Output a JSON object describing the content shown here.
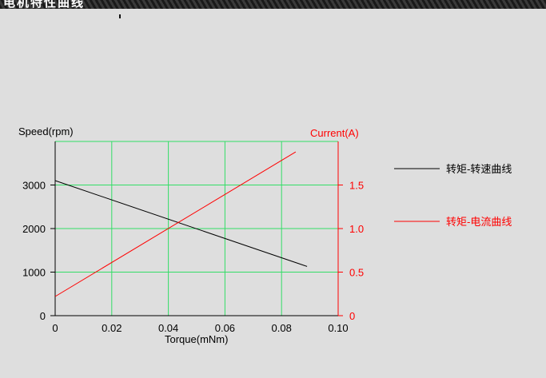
{
  "banner": {
    "text": "电机特性曲线"
  },
  "chart_data": {
    "type": "line",
    "xlabel": "Torque(mNm)",
    "ylabel_left": "Speed(rpm)",
    "ylabel_right": "Current(A)",
    "xlim": [
      0,
      0.1
    ],
    "ylim_left": [
      0,
      4000
    ],
    "ylim_right": [
      0,
      2.0
    ],
    "x_ticks": [
      "0",
      "0.02",
      "0.04",
      "0.06",
      "0.08",
      "0.10"
    ],
    "y_ticks_left": [
      "0",
      "1000",
      "2000",
      "3000"
    ],
    "y_ticks_right": [
      "0",
      "0.5",
      "1.0",
      "1.5"
    ],
    "grid": true,
    "grid_color": "#33dd66",
    "series": [
      {
        "name": "转矩-转速曲线",
        "axis": "left",
        "color": "#000000",
        "x": [
          0,
          0.089
        ],
        "y": [
          3100,
          1130
        ]
      },
      {
        "name": "转矩-电流曲线",
        "axis": "right",
        "color": "#ff0000",
        "x": [
          0,
          0.085
        ],
        "y": [
          0.22,
          1.88
        ]
      }
    ],
    "legend_position": "right"
  }
}
